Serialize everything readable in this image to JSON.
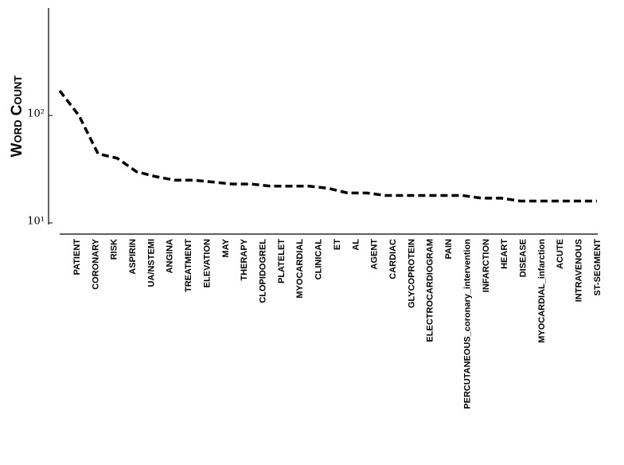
{
  "chart_data": {
    "type": "line",
    "ylabel": "Word Count",
    "categories": [
      "PATIENT",
      "CORONARY",
      "RISK",
      "ASPIRIN",
      "UA/NSTEMI",
      "ANGINA",
      "TREATMENT",
      "ELEVATION",
      "MAY",
      "THERAPY",
      "CLOPIDOGREL",
      "PLATELET",
      "MYOCARDIAL",
      "CLINICAL",
      "ET",
      "AL",
      "AGENT",
      "CARDIAC",
      "GLYCOPROTEIN",
      "ELECTROCARDIOGRAM",
      "PAIN",
      "PERCUTANEOUS_coronary_intervention",
      "INFARCTION",
      "HEART",
      "DISEASE",
      "MYOCARDIAL_infarction",
      "ACUTE",
      "INTRAVENOUS",
      "ST-SEGMENT"
    ],
    "values": [
      170,
      100,
      44,
      40,
      30,
      27,
      25,
      25,
      24,
      23,
      23,
      22,
      22,
      22,
      21,
      19,
      19,
      18,
      18,
      18,
      18,
      18,
      17,
      17,
      16,
      16,
      16,
      16,
      16
    ],
    "color": "#000000",
    "dashed": true,
    "log_scale": true,
    "ylim": [
      10,
      1000
    ],
    "yticks": [
      {
        "value": 10,
        "label": "10¹"
      },
      {
        "value": 100,
        "label": "10²"
      }
    ]
  }
}
